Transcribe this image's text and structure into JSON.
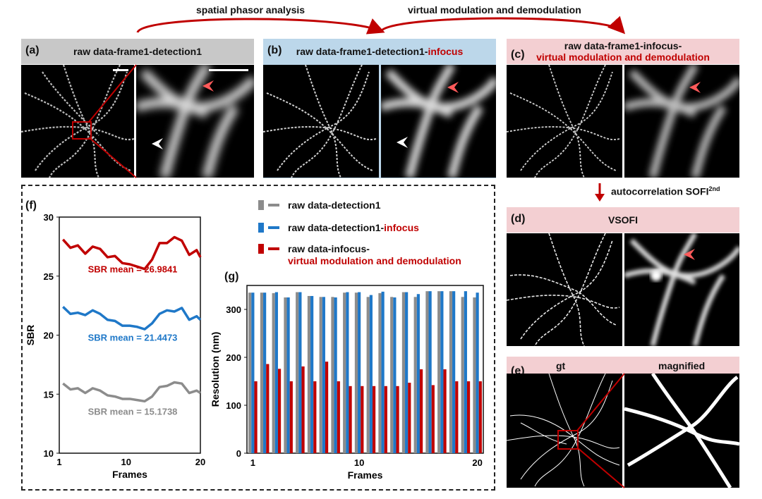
{
  "top_labels": {
    "spatial": "spatial phasor analysis",
    "virtual": "virtual modulation and demodulation"
  },
  "panels": {
    "a": {
      "label": "(a)",
      "title": "raw data-frame1-detection1"
    },
    "b": {
      "label": "(b)",
      "title_prefix": "raw data-frame1-detection1-",
      "title_red": "infocus"
    },
    "c": {
      "label": "(c)",
      "title_line1": "raw data-frame1-infocus-",
      "title_line2": "virtual modulation and demodulation"
    },
    "d": {
      "label": "(d)",
      "title": "VSOFI"
    },
    "e": {
      "label": "(e)",
      "title_left": "gt",
      "title_right": "magnified"
    },
    "f": {
      "label": "(f)"
    },
    "g": {
      "label": "(g)"
    }
  },
  "arrow_label": {
    "text": "autocorrelation SOFI",
    "sup": "2nd"
  },
  "legend": {
    "item1": "raw data-detection1",
    "item2_prefix": "raw data-detection1-",
    "item2_red": "infocus",
    "item3_line1": "raw data-infocus-",
    "item3_line2": "virtual modulation and demodulation"
  },
  "colors": {
    "gray": "#8c8c8c",
    "blue": "#1f78c8",
    "red": "#c00000",
    "header_gray": "#c8c8c8",
    "header_blue": "#bcd7ea",
    "header_pink": "#f3cfd2"
  },
  "chart_data": [
    {
      "type": "line",
      "panel": "f",
      "xlabel": "Frames",
      "ylabel": "SBR",
      "xlim": [
        1,
        20
      ],
      "ylim": [
        10,
        30
      ],
      "xticks": [
        1,
        10,
        20
      ],
      "yticks": [
        10,
        15,
        20,
        25,
        30
      ],
      "x": [
        1.5,
        2.5,
        3.5,
        4.5,
        5.5,
        6.5,
        7.5,
        8.5,
        9.5,
        10.5,
        11.5,
        12.5,
        13.5,
        14.5,
        15.5,
        16.5,
        17.5,
        18.5,
        19.5,
        20
      ],
      "series": [
        {
          "name": "raw data-infocus-virtual modulation and demodulation",
          "color": "#c00000",
          "values": [
            28.1,
            27.4,
            27.6,
            26.9,
            27.5,
            27.3,
            26.6,
            26.7,
            26.1,
            26.0,
            25.8,
            25.6,
            26.4,
            27.8,
            27.8,
            28.3,
            28.0,
            26.8,
            27.2,
            26.6
          ],
          "annotation": "SBR mean = 26.9841"
        },
        {
          "name": "raw data-detection1-infocus",
          "color": "#1f78c8",
          "values": [
            22.4,
            21.8,
            21.9,
            21.7,
            22.1,
            21.8,
            21.3,
            21.2,
            20.8,
            20.8,
            20.7,
            20.5,
            21.0,
            21.8,
            22.1,
            22.0,
            22.3,
            21.3,
            21.6,
            21.3
          ],
          "annotation": "SBR mean = 21.4473"
        },
        {
          "name": "raw data-detection1",
          "color": "#8c8c8c",
          "values": [
            15.9,
            15.4,
            15.5,
            15.1,
            15.5,
            15.3,
            14.9,
            14.8,
            14.6,
            14.6,
            14.5,
            14.4,
            14.8,
            15.6,
            15.7,
            16.0,
            15.9,
            15.1,
            15.3,
            15.1
          ],
          "annotation": "SBR mean = 15.1738"
        }
      ]
    },
    {
      "type": "bar",
      "panel": "g",
      "xlabel": "Frames",
      "ylabel": "Resolution (nm)",
      "xlim": [
        1,
        20
      ],
      "ylim": [
        0,
        350
      ],
      "xticks": [
        1,
        10,
        20
      ],
      "yticks": [
        0,
        100,
        200,
        300
      ],
      "categories": [
        1,
        2,
        3,
        4,
        5,
        6,
        7,
        8,
        9,
        10,
        11,
        12,
        13,
        14,
        15,
        16,
        17,
        18,
        19,
        20
      ],
      "series": [
        {
          "name": "raw data-detection1",
          "color": "#8c8c8c",
          "values": [
            335,
            335,
            334,
            325,
            336,
            328,
            326,
            326,
            335,
            335,
            326,
            334,
            326,
            336,
            326,
            338,
            338,
            338,
            326,
            325
          ]
        },
        {
          "name": "raw data-detection1-infocus",
          "color": "#1f78c8",
          "values": [
            335,
            335,
            336,
            325,
            336,
            328,
            326,
            325,
            336,
            336,
            330,
            337,
            325,
            336,
            332,
            338,
            338,
            338,
            338,
            335
          ]
        },
        {
          "name": "raw data-infocus-virtual modulation and demodulation",
          "color": "#c00000",
          "values": [
            150,
            186,
            176,
            150,
            181,
            150,
            191,
            150,
            140,
            140,
            140,
            140,
            140,
            147,
            175,
            142,
            175,
            150,
            150,
            150
          ]
        }
      ]
    }
  ]
}
